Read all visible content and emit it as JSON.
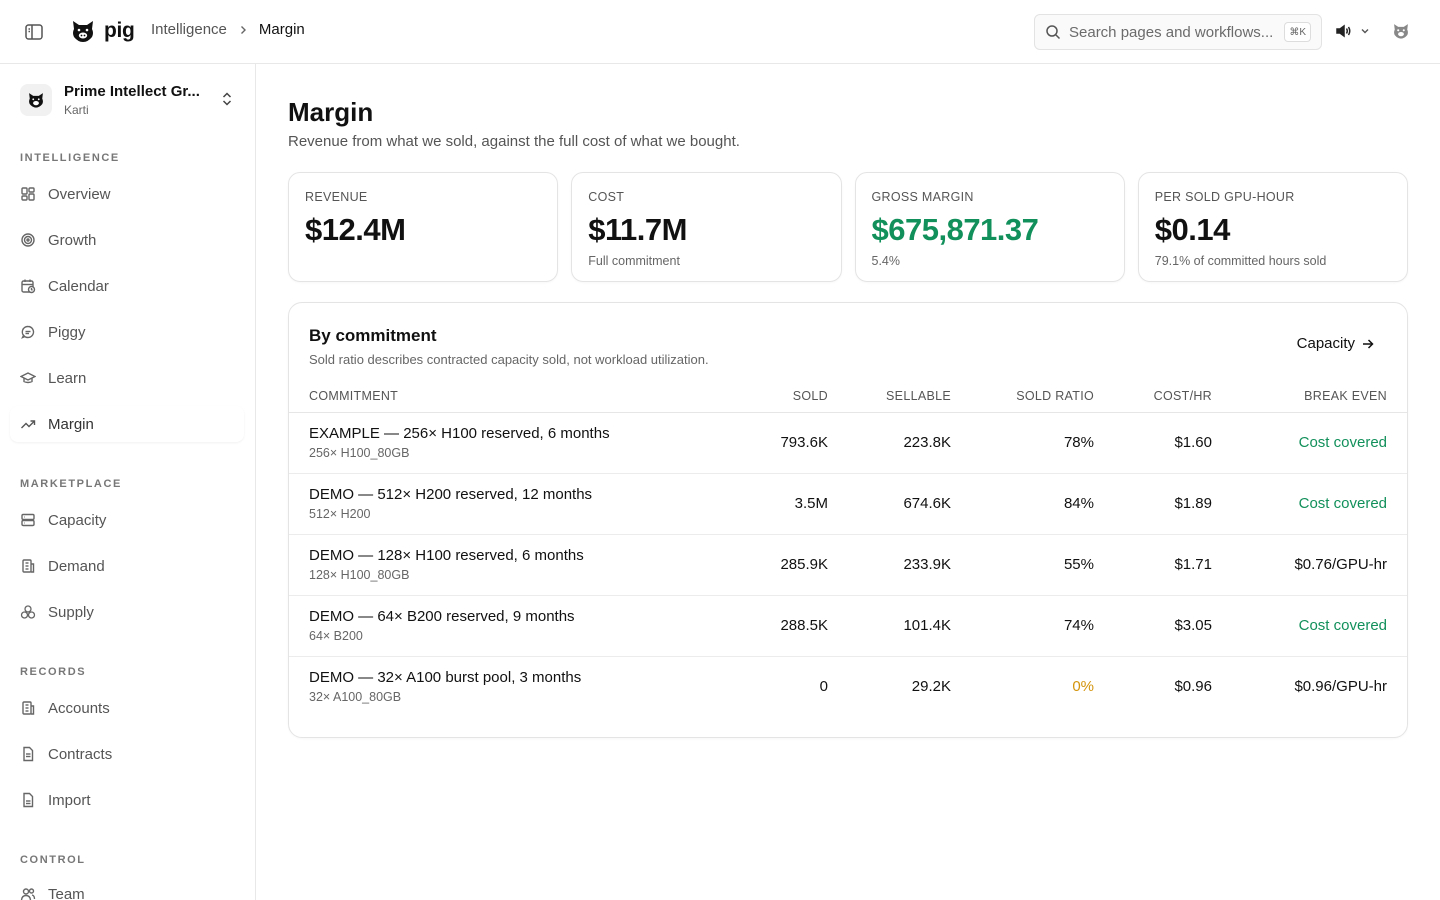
{
  "app": {
    "name": "pig",
    "breadcrumb": {
      "parent": "Intelligence",
      "current": "Margin"
    },
    "search": {
      "placeholder": "Search pages and workflows...",
      "shortcut": "⌘K"
    }
  },
  "sidebar": {
    "org": {
      "name": "Prime Intellect Gr...",
      "user": "Karti"
    },
    "sections": [
      {
        "title": "INTELLIGENCE",
        "items": [
          "Overview",
          "Growth",
          "Calendar",
          "Piggy",
          "Learn",
          "Margin"
        ]
      },
      {
        "title": "MARKETPLACE",
        "items": [
          "Capacity",
          "Demand",
          "Supply"
        ]
      },
      {
        "title": "RECORDS",
        "items": [
          "Accounts",
          "Contracts",
          "Import"
        ]
      },
      {
        "title": "CONTROL",
        "items": [
          "Team"
        ]
      }
    ],
    "active": "Margin"
  },
  "page": {
    "title": "Margin",
    "subtitle": "Revenue from what we sold, against the full cost of what we bought."
  },
  "kpis": [
    {
      "label": "REVENUE",
      "value": "$12.4M",
      "sub": ""
    },
    {
      "label": "COST",
      "value": "$11.7M",
      "sub": "Full commitment"
    },
    {
      "label": "GROSS MARGIN",
      "value": "$675,871.37",
      "sub": "5.4%"
    },
    {
      "label": "PER SOLD GPU-HOUR",
      "value": "$0.14",
      "sub": "79.1% of committed hours sold"
    }
  ],
  "table": {
    "title": "By commitment",
    "description": "Sold ratio describes contracted capacity sold, not workload utilization.",
    "link": "Capacity",
    "columns": [
      "COMMITMENT",
      "SOLD",
      "SELLABLE",
      "SOLD RATIO",
      "COST/HR",
      "BREAK EVEN"
    ],
    "rows": [
      {
        "name": "EXAMPLE — 256× H100 reserved, 6 months",
        "sub": "256× H100_80GB",
        "sold": "793.6K",
        "sellable": "223.8K",
        "ratio": "78%",
        "cost": "$1.60",
        "breakeven": "Cost covered"
      },
      {
        "name": "DEMO — 512× H200 reserved, 12 months",
        "sub": "512× H200",
        "sold": "3.5M",
        "sellable": "674.6K",
        "ratio": "84%",
        "cost": "$1.89",
        "breakeven": "Cost covered"
      },
      {
        "name": "DEMO — 128× H100 reserved, 6 months",
        "sub": "128× H100_80GB",
        "sold": "285.9K",
        "sellable": "233.9K",
        "ratio": "55%",
        "cost": "$1.71",
        "breakeven": "$0.76/GPU-hr"
      },
      {
        "name": "DEMO — 64× B200 reserved, 9 months",
        "sub": "64× B200",
        "sold": "288.5K",
        "sellable": "101.4K",
        "ratio": "74%",
        "cost": "$3.05",
        "breakeven": "Cost covered"
      },
      {
        "name": "DEMO — 32× A100 burst pool, 3 months",
        "sub": "32× A100_80GB",
        "sold": "0",
        "sellable": "29.2K",
        "ratio": "0%",
        "cost": "$0.96",
        "breakeven": "$0.96/GPU-hr"
      }
    ]
  },
  "colors": {
    "positive": "#12905b",
    "warning": "#d4940c"
  }
}
